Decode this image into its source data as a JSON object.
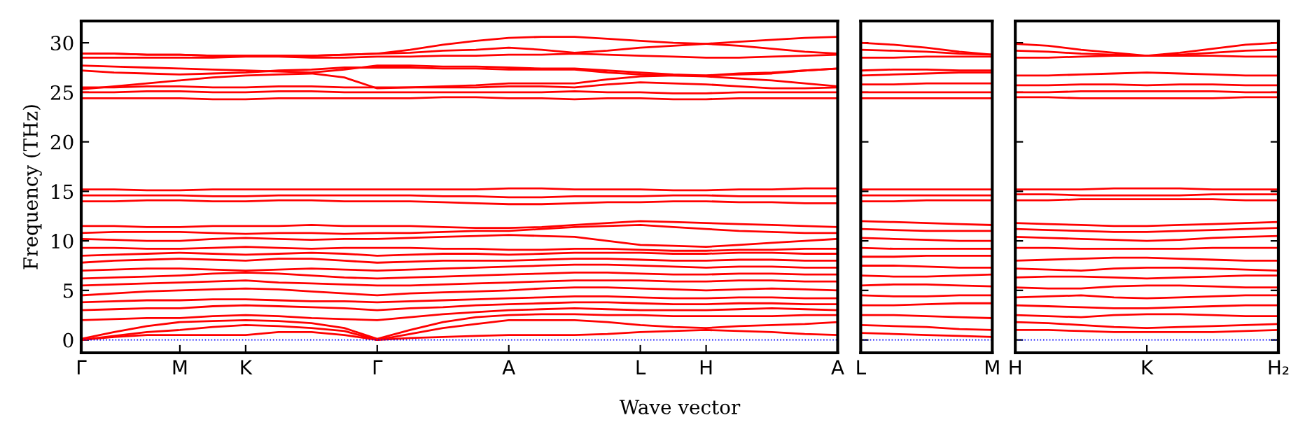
{
  "chart_data": [
    {
      "type": "line",
      "ylabel": "Frequency (THz)",
      "xlabel": "Wave vector",
      "grid": false,
      "legend": false,
      "categories": [
        "Γ",
        null,
        null,
        "M",
        null,
        "K",
        null,
        null,
        null,
        "Γ",
        null,
        null,
        null,
        "A",
        null,
        null,
        null,
        "L",
        null,
        "H",
        null,
        null,
        null,
        "A"
      ],
      "ylim": [
        -1.3,
        32.2
      ],
      "yticks": [
        0,
        5,
        10,
        15,
        20,
        25,
        30
      ],
      "ref_lines": [
        {
          "axis": "y",
          "value": 0,
          "color": "#0000ff",
          "line_style": "dotted"
        }
      ],
      "series": [
        {
          "color": "#ff0000",
          "values": [
            0,
            0.4,
            0.8,
            1.0,
            1.3,
            1.5,
            1.4,
            1.2,
            0.9,
            0,
            0.2,
            0.3,
            0.4,
            0.5,
            0.5,
            0.5,
            0.6,
            0.8,
            0.9,
            1.0,
            0.9,
            0.8,
            0.6,
            0.5
          ]
        },
        {
          "color": "#ff0000",
          "values": [
            0,
            0.3,
            0.5,
            0.5,
            0.5,
            0.5,
            0.8,
            0.8,
            0.5,
            0,
            0.6,
            1.2,
            1.6,
            2.0,
            2.0,
            2.0,
            1.8,
            1.5,
            1.3,
            1.2,
            1.4,
            1.5,
            1.6,
            1.8
          ]
        },
        {
          "color": "#ff0000",
          "values": [
            0.1,
            0.8,
            1.4,
            1.8,
            1.9,
            2.0,
            1.9,
            1.7,
            1.2,
            0.1,
            1.0,
            1.8,
            2.3,
            2.5,
            2.6,
            2.6,
            2.5,
            2.5,
            2.4,
            2.4,
            2.4,
            2.4,
            2.5,
            2.5
          ]
        },
        {
          "color": "#ff0000",
          "values": [
            2.0,
            2.1,
            2.2,
            2.2,
            2.4,
            2.5,
            2.4,
            2.2,
            2.1,
            2.0,
            2.3,
            2.6,
            2.8,
            3.0,
            3.1,
            3.2,
            3.1,
            3.0,
            3.0,
            3.0,
            3.1,
            3.2,
            3.1,
            3.0
          ]
        },
        {
          "color": "#ff0000",
          "values": [
            3.0,
            3.1,
            3.2,
            3.2,
            3.4,
            3.5,
            3.4,
            3.3,
            3.2,
            3.0,
            3.2,
            3.3,
            3.5,
            3.6,
            3.7,
            3.8,
            3.8,
            3.7,
            3.6,
            3.6,
            3.7,
            3.7,
            3.6,
            3.6
          ]
        },
        {
          "color": "#ff0000",
          "values": [
            3.8,
            3.9,
            4.0,
            4.0,
            4.1,
            4.1,
            4.0,
            3.9,
            3.9,
            3.8,
            3.9,
            4.0,
            4.1,
            4.2,
            4.3,
            4.4,
            4.4,
            4.3,
            4.2,
            4.2,
            4.3,
            4.3,
            4.2,
            4.2
          ]
        },
        {
          "color": "#ff0000",
          "values": [
            4.5,
            4.7,
            4.9,
            5.0,
            5.1,
            5.2,
            5.1,
            4.9,
            4.7,
            4.5,
            4.7,
            4.8,
            4.9,
            5.0,
            5.2,
            5.3,
            5.3,
            5.2,
            5.1,
            5.0,
            5.1,
            5.2,
            5.1,
            5.0
          ]
        },
        {
          "color": "#ff0000",
          "values": [
            5.5,
            5.6,
            5.7,
            5.8,
            5.9,
            6.0,
            5.8,
            5.7,
            5.6,
            5.5,
            5.5,
            5.6,
            5.7,
            5.8,
            5.9,
            6.0,
            6.0,
            6.0,
            5.9,
            5.9,
            6.0,
            6.0,
            5.9,
            5.9
          ]
        },
        {
          "color": "#ff0000",
          "values": [
            6.2,
            6.3,
            6.4,
            6.5,
            6.7,
            6.8,
            6.7,
            6.5,
            6.3,
            6.2,
            6.3,
            6.4,
            6.5,
            6.6,
            6.7,
            6.8,
            6.8,
            6.7,
            6.6,
            6.6,
            6.7,
            6.7,
            6.6,
            6.6
          ]
        },
        {
          "color": "#ff0000",
          "values": [
            7.0,
            7.1,
            7.2,
            7.2,
            7.1,
            7.0,
            7.1,
            7.2,
            7.1,
            7.0,
            7.1,
            7.2,
            7.3,
            7.4,
            7.5,
            7.6,
            7.6,
            7.5,
            7.4,
            7.3,
            7.4,
            7.4,
            7.3,
            7.3
          ]
        },
        {
          "color": "#ff0000",
          "values": [
            7.8,
            8.0,
            8.1,
            8.2,
            8.1,
            8.0,
            8.2,
            8.2,
            8.0,
            7.8,
            7.9,
            8.0,
            8.0,
            8.0,
            8.1,
            8.2,
            8.2,
            8.1,
            8.0,
            8.0,
            8.1,
            8.1,
            8.0,
            8.0
          ]
        },
        {
          "color": "#ff0000",
          "values": [
            8.5,
            8.6,
            8.7,
            8.8,
            8.7,
            8.6,
            8.7,
            8.8,
            8.7,
            8.5,
            8.6,
            8.7,
            8.7,
            8.6,
            8.7,
            8.8,
            8.8,
            8.8,
            8.7,
            8.7,
            8.8,
            8.8,
            8.7,
            8.7
          ]
        },
        {
          "color": "#ff0000",
          "values": [
            9.3,
            9.3,
            9.2,
            9.2,
            9.3,
            9.4,
            9.3,
            9.2,
            9.3,
            9.3,
            9.3,
            9.2,
            9.2,
            9.1,
            9.1,
            9.2,
            9.2,
            9.1,
            9.0,
            9.0,
            9.1,
            9.1,
            9.2,
            9.2
          ]
        },
        {
          "color": "#ff0000",
          "values": [
            10.2,
            10.1,
            10.0,
            10.0,
            10.2,
            10.3,
            10.2,
            10.1,
            10.2,
            10.2,
            10.3,
            10.4,
            10.5,
            10.6,
            10.5,
            10.4,
            10.0,
            9.6,
            9.5,
            9.4,
            9.6,
            9.8,
            10.0,
            10.2
          ]
        },
        {
          "color": "#ff0000",
          "values": [
            10.8,
            10.9,
            10.9,
            10.9,
            10.8,
            10.7,
            10.8,
            10.8,
            10.7,
            10.8,
            10.8,
            10.9,
            11.0,
            11.0,
            11.2,
            11.4,
            11.5,
            11.6,
            11.4,
            11.2,
            11.0,
            10.9,
            10.8,
            10.8
          ]
        },
        {
          "color": "#ff0000",
          "values": [
            11.5,
            11.5,
            11.4,
            11.4,
            11.5,
            11.5,
            11.5,
            11.6,
            11.5,
            11.5,
            11.5,
            11.4,
            11.3,
            11.3,
            11.4,
            11.6,
            11.8,
            12.0,
            11.9,
            11.8,
            11.7,
            11.6,
            11.5,
            11.4
          ]
        },
        {
          "color": "#ff0000",
          "values": [
            14.0,
            14.0,
            14.1,
            14.1,
            14.0,
            14.0,
            14.1,
            14.1,
            14.0,
            14.0,
            14.0,
            13.9,
            13.8,
            13.7,
            13.7,
            13.8,
            13.9,
            13.9,
            14.0,
            14.0,
            13.9,
            13.9,
            13.8,
            13.8
          ]
        },
        {
          "color": "#ff0000",
          "values": [
            14.6,
            14.6,
            14.6,
            14.6,
            14.5,
            14.5,
            14.6,
            14.6,
            14.6,
            14.6,
            14.6,
            14.5,
            14.5,
            14.4,
            14.4,
            14.5,
            14.5,
            14.5,
            14.6,
            14.6,
            14.5,
            14.5,
            14.5,
            14.5
          ]
        },
        {
          "color": "#ff0000",
          "values": [
            15.2,
            15.2,
            15.1,
            15.1,
            15.2,
            15.2,
            15.2,
            15.2,
            15.2,
            15.2,
            15.2,
            15.2,
            15.2,
            15.3,
            15.3,
            15.2,
            15.2,
            15.2,
            15.1,
            15.1,
            15.2,
            15.2,
            15.3,
            15.3
          ]
        },
        {
          "color": "#ff0000",
          "values": [
            24.4,
            24.4,
            24.4,
            24.4,
            24.3,
            24.3,
            24.4,
            24.4,
            24.4,
            24.4,
            24.4,
            24.5,
            24.5,
            24.4,
            24.4,
            24.3,
            24.4,
            24.4,
            24.3,
            24.3,
            24.4,
            24.4,
            24.4,
            24.4
          ]
        },
        {
          "color": "#ff0000",
          "values": [
            25.0,
            25.0,
            25.1,
            25.1,
            25.0,
            25.0,
            25.1,
            25.1,
            25.0,
            25.0,
            25.0,
            25.0,
            25.0,
            25.0,
            25.0,
            25.1,
            25.0,
            25.0,
            24.9,
            24.9,
            25.0,
            25.0,
            25.0,
            25.0
          ]
        },
        {
          "color": "#ff0000",
          "values": [
            25.5,
            25.5,
            25.6,
            25.6,
            25.5,
            25.5,
            25.6,
            25.6,
            25.5,
            25.5,
            25.5,
            25.5,
            25.5,
            25.6,
            25.6,
            25.5,
            25.8,
            26.0,
            25.9,
            25.8,
            25.6,
            25.4,
            25.4,
            25.5
          ]
        },
        {
          "color": "#ff0000",
          "values": [
            25.3,
            25.6,
            25.9,
            26.2,
            26.5,
            26.7,
            26.8,
            26.9,
            26.5,
            25.4,
            25.5,
            25.6,
            25.7,
            25.9,
            25.9,
            25.9,
            26.3,
            26.6,
            26.7,
            26.7,
            26.8,
            26.9,
            27.2,
            27.4
          ]
        },
        {
          "color": "#ff0000",
          "values": [
            27.7,
            27.6,
            27.5,
            27.4,
            27.3,
            27.2,
            27.1,
            27.0,
            27.3,
            27.7,
            27.7,
            27.6,
            27.6,
            27.5,
            27.4,
            27.4,
            27.2,
            27.0,
            26.8,
            26.7,
            26.9,
            27.0,
            27.2,
            27.4
          ]
        },
        {
          "color": "#ff0000",
          "values": [
            27.2,
            27.0,
            26.9,
            26.8,
            26.9,
            27.0,
            27.2,
            27.3,
            27.5,
            27.5,
            27.5,
            27.4,
            27.4,
            27.3,
            27.3,
            27.3,
            27.0,
            26.8,
            26.7,
            26.6,
            26.4,
            26.2,
            25.9,
            25.6
          ]
        },
        {
          "color": "#ff0000",
          "values": [
            28.5,
            28.5,
            28.5,
            28.5,
            28.5,
            28.6,
            28.6,
            28.5,
            28.5,
            28.6,
            28.6,
            28.7,
            28.7,
            28.8,
            28.8,
            28.9,
            28.8,
            28.7,
            28.6,
            28.5,
            28.5,
            28.6,
            28.7,
            28.8
          ]
        },
        {
          "color": "#ff0000",
          "values": [
            28.9,
            28.9,
            28.8,
            28.8,
            28.7,
            28.7,
            28.7,
            28.7,
            28.8,
            28.9,
            29.0,
            29.2,
            29.3,
            29.5,
            29.3,
            29.0,
            29.2,
            29.5,
            29.7,
            29.9,
            30.1,
            30.3,
            30.5,
            30.6
          ]
        },
        {
          "color": "#ff0000",
          "values": [
            28.9,
            28.9,
            28.8,
            28.8,
            28.7,
            28.7,
            28.7,
            28.7,
            28.8,
            28.9,
            29.3,
            29.8,
            30.2,
            30.5,
            30.6,
            30.6,
            30.4,
            30.2,
            30.0,
            29.9,
            29.7,
            29.4,
            29.1,
            28.9
          ]
        }
      ]
    },
    {
      "type": "line",
      "grid": false,
      "legend": false,
      "tick_labels": "x",
      "categories": [
        "L",
        null,
        null,
        null,
        "M"
      ],
      "ylim": [
        -1.3,
        32.2
      ],
      "yticks": [
        {
          "value": 0,
          "label": null
        },
        {
          "value": 5,
          "label": null
        },
        {
          "value": 10,
          "label": null
        },
        {
          "value": 15,
          "label": null
        },
        {
          "value": 20,
          "label": null
        },
        {
          "value": 25,
          "label": null
        },
        {
          "value": 30,
          "label": null
        }
      ],
      "ref_lines": [
        {
          "axis": "y",
          "value": 0,
          "color": "#0000ff",
          "line_style": "dotted"
        }
      ],
      "series": [
        {
          "color": "#ff0000",
          "values": [
            0.7,
            0.6,
            0.5,
            0.4,
            0.3
          ]
        },
        {
          "color": "#ff0000",
          "values": [
            1.5,
            1.4,
            1.3,
            1.1,
            1.0
          ]
        },
        {
          "color": "#ff0000",
          "values": [
            2.5,
            2.5,
            2.4,
            2.3,
            2.2
          ]
        },
        {
          "color": "#ff0000",
          "values": [
            3.5,
            3.5,
            3.6,
            3.7,
            3.7
          ]
        },
        {
          "color": "#ff0000",
          "values": [
            4.5,
            4.4,
            4.4,
            4.5,
            4.5
          ]
        },
        {
          "color": "#ff0000",
          "values": [
            5.5,
            5.6,
            5.6,
            5.5,
            5.4
          ]
        },
        {
          "color": "#ff0000",
          "values": [
            6.5,
            6.4,
            6.4,
            6.5,
            6.6
          ]
        },
        {
          "color": "#ff0000",
          "values": [
            7.5,
            7.5,
            7.4,
            7.3,
            7.3
          ]
        },
        {
          "color": "#ff0000",
          "values": [
            8.4,
            8.4,
            8.5,
            8.5,
            8.5
          ]
        },
        {
          "color": "#ff0000",
          "values": [
            9.3,
            9.2,
            9.2,
            9.2,
            9.2
          ]
        },
        {
          "color": "#ff0000",
          "values": [
            10.3,
            10.2,
            10.1,
            10.0,
            10.0
          ]
        },
        {
          "color": "#ff0000",
          "values": [
            11.2,
            11.1,
            11.0,
            11.0,
            11.0
          ]
        },
        {
          "color": "#ff0000",
          "values": [
            12.0,
            11.9,
            11.8,
            11.7,
            11.6
          ]
        },
        {
          "color": "#ff0000",
          "values": [
            14.0,
            14.0,
            14.1,
            14.1,
            14.1
          ]
        },
        {
          "color": "#ff0000",
          "values": [
            14.6,
            14.6,
            14.6,
            14.6,
            14.6
          ]
        },
        {
          "color": "#ff0000",
          "values": [
            15.2,
            15.2,
            15.2,
            15.2,
            15.2
          ]
        },
        {
          "color": "#ff0000",
          "values": [
            24.4,
            24.4,
            24.4,
            24.4,
            24.4
          ]
        },
        {
          "color": "#ff0000",
          "values": [
            25.0,
            25.0,
            25.0,
            25.0,
            25.0
          ]
        },
        {
          "color": "#ff0000",
          "values": [
            25.8,
            25.8,
            25.9,
            25.9,
            25.9
          ]
        },
        {
          "color": "#ff0000",
          "values": [
            26.7,
            26.8,
            26.9,
            27.0,
            27.0
          ]
        },
        {
          "color": "#ff0000",
          "values": [
            27.2,
            27.3,
            27.3,
            27.2,
            27.2
          ]
        },
        {
          "color": "#ff0000",
          "values": [
            28.5,
            28.5,
            28.6,
            28.6,
            28.6
          ]
        },
        {
          "color": "#ff0000",
          "values": [
            29.3,
            29.2,
            29.1,
            28.9,
            28.8
          ]
        },
        {
          "color": "#ff0000",
          "values": [
            30.0,
            29.8,
            29.5,
            29.1,
            28.8
          ]
        }
      ]
    },
    {
      "type": "line",
      "grid": false,
      "legend": false,
      "tick_labels": "x",
      "categories": [
        "H",
        null,
        null,
        null,
        "K",
        null,
        null,
        null,
        "H₂"
      ],
      "ylim": [
        -1.3,
        32.2
      ],
      "yticks": [
        {
          "value": 0,
          "label": null
        },
        {
          "value": 5,
          "label": null
        },
        {
          "value": 10,
          "label": null
        },
        {
          "value": 15,
          "label": null
        },
        {
          "value": 20,
          "label": null
        },
        {
          "value": 25,
          "label": null
        },
        {
          "value": 30,
          "label": null
        }
      ],
      "ref_lines": [
        {
          "axis": "y",
          "value": 0,
          "color": "#0000ff",
          "line_style": "dotted"
        }
      ],
      "series": [
        {
          "color": "#ff0000",
          "values": [
            1.0,
            1.0,
            0.9,
            0.8,
            0.8,
            0.8,
            0.8,
            0.9,
            1.0
          ]
        },
        {
          "color": "#ff0000",
          "values": [
            1.8,
            1.7,
            1.5,
            1.3,
            1.2,
            1.3,
            1.4,
            1.5,
            1.6
          ]
        },
        {
          "color": "#ff0000",
          "values": [
            2.5,
            2.4,
            2.3,
            2.5,
            2.6,
            2.6,
            2.5,
            2.4,
            2.4
          ]
        },
        {
          "color": "#ff0000",
          "values": [
            3.5,
            3.4,
            3.3,
            3.2,
            3.2,
            3.3,
            3.4,
            3.5,
            3.5
          ]
        },
        {
          "color": "#ff0000",
          "values": [
            4.3,
            4.4,
            4.5,
            4.3,
            4.2,
            4.3,
            4.4,
            4.5,
            4.5
          ]
        },
        {
          "color": "#ff0000",
          "values": [
            5.3,
            5.2,
            5.2,
            5.4,
            5.5,
            5.5,
            5.4,
            5.3,
            5.3
          ]
        },
        {
          "color": "#ff0000",
          "values": [
            6.3,
            6.4,
            6.4,
            6.3,
            6.2,
            6.3,
            6.4,
            6.5,
            6.5
          ]
        },
        {
          "color": "#ff0000",
          "values": [
            7.2,
            7.1,
            7.0,
            7.2,
            7.3,
            7.3,
            7.2,
            7.1,
            7.0
          ]
        },
        {
          "color": "#ff0000",
          "values": [
            8.0,
            8.1,
            8.2,
            8.3,
            8.3,
            8.2,
            8.1,
            8.0,
            8.0
          ]
        },
        {
          "color": "#ff0000",
          "values": [
            9.3,
            9.3,
            9.2,
            9.2,
            9.2,
            9.2,
            9.3,
            9.3,
            9.3
          ]
        },
        {
          "color": "#ff0000",
          "values": [
            10.4,
            10.3,
            10.2,
            10.1,
            10.0,
            10.1,
            10.3,
            10.4,
            10.5
          ]
        },
        {
          "color": "#ff0000",
          "values": [
            11.2,
            11.1,
            11.0,
            10.9,
            10.9,
            11.0,
            11.1,
            11.2,
            11.3
          ]
        },
        {
          "color": "#ff0000",
          "values": [
            11.8,
            11.7,
            11.6,
            11.5,
            11.5,
            11.6,
            11.7,
            11.8,
            11.9
          ]
        },
        {
          "color": "#ff0000",
          "values": [
            14.1,
            14.1,
            14.2,
            14.2,
            14.2,
            14.2,
            14.2,
            14.1,
            14.1
          ]
        },
        {
          "color": "#ff0000",
          "values": [
            14.7,
            14.7,
            14.6,
            14.6,
            14.6,
            14.6,
            14.7,
            14.7,
            14.7
          ]
        },
        {
          "color": "#ff0000",
          "values": [
            15.2,
            15.2,
            15.2,
            15.3,
            15.3,
            15.3,
            15.2,
            15.2,
            15.2
          ]
        },
        {
          "color": "#ff0000",
          "values": [
            24.5,
            24.5,
            24.4,
            24.4,
            24.4,
            24.4,
            24.4,
            24.5,
            24.5
          ]
        },
        {
          "color": "#ff0000",
          "values": [
            25.0,
            25.0,
            25.1,
            25.1,
            25.1,
            25.1,
            25.1,
            25.0,
            25.0
          ]
        },
        {
          "color": "#ff0000",
          "values": [
            25.7,
            25.7,
            25.8,
            25.8,
            25.7,
            25.8,
            25.8,
            25.7,
            25.7
          ]
        },
        {
          "color": "#ff0000",
          "values": [
            26.7,
            26.7,
            26.8,
            26.9,
            27.0,
            26.9,
            26.8,
            26.7,
            26.7
          ]
        },
        {
          "color": "#ff0000",
          "values": [
            28.5,
            28.5,
            28.6,
            28.7,
            28.7,
            28.7,
            28.7,
            28.6,
            28.6
          ]
        },
        {
          "color": "#ff0000",
          "values": [
            29.2,
            29.1,
            28.9,
            28.8,
            28.7,
            28.8,
            29.0,
            29.2,
            29.3
          ]
        },
        {
          "color": "#ff0000",
          "values": [
            29.9,
            29.7,
            29.3,
            29.0,
            28.7,
            29.0,
            29.4,
            29.8,
            30.0
          ]
        }
      ]
    }
  ]
}
